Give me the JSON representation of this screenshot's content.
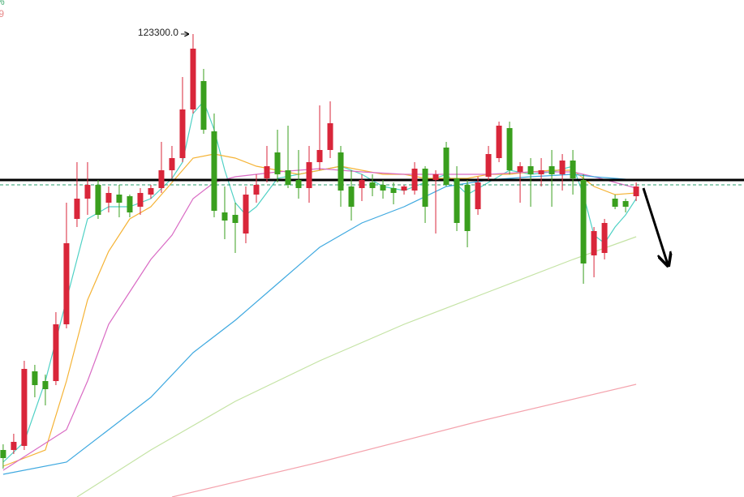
{
  "chart_data": {
    "type": "candlestick",
    "up_color": "#d9263a",
    "down_color": "#3a9f1e",
    "xlim": [
      -0.3,
      60.3
    ],
    "ylim": [
      109025,
      124350
    ],
    "open": [
      110475,
      110475,
      110600,
      112900,
      112600,
      112600,
      114350,
      117600,
      118225,
      118650,
      118100,
      118350,
      118300,
      117975,
      118350,
      118550,
      119100,
      119475,
      120975,
      121850,
      120300,
      117800,
      117725,
      117150,
      118350,
      118850,
      119650,
      119100,
      118800,
      118550,
      119350,
      119725,
      119650,
      118600,
      118550,
      118725,
      118650,
      118550,
      118475,
      118475,
      119150,
      118800,
      119800,
      118850,
      118650,
      117900,
      118900,
      119475,
      120400,
      119050,
      119225,
      118975,
      119225,
      118975,
      119400,
      118800,
      116475,
      116550,
      118225,
      118150,
      118300
    ],
    "high": [
      110650,
      110975,
      113225,
      113100,
      112800,
      114725,
      118100,
      119350,
      119350,
      118800,
      118600,
      118650,
      118350,
      118550,
      118650,
      119975,
      119850,
      121975,
      123300,
      122225,
      120850,
      118600,
      118100,
      118600,
      118975,
      119850,
      120350,
      120475,
      119725,
      119850,
      121100,
      121225,
      119850,
      119100,
      118975,
      118975,
      118800,
      118725,
      118650,
      119350,
      119225,
      119100,
      119975,
      119225,
      118800,
      118900,
      119850,
      120600,
      120600,
      119350,
      119475,
      119475,
      119725,
      119600,
      119725,
      118975,
      117350,
      117600,
      118350,
      118225,
      118725
    ],
    "low": [
      109900,
      110350,
      110475,
      112100,
      111850,
      112475,
      114225,
      117350,
      117725,
      117600,
      117800,
      117650,
      117650,
      117725,
      118225,
      118400,
      118850,
      119350,
      120850,
      120225,
      117650,
      116975,
      116550,
      116850,
      118100,
      118725,
      118725,
      118550,
      118225,
      118100,
      119100,
      119475,
      117975,
      117550,
      118150,
      118300,
      118225,
      118050,
      118350,
      118350,
      117475,
      117150,
      118600,
      117225,
      116725,
      117725,
      118800,
      119350,
      118975,
      118100,
      117975,
      118600,
      117975,
      118475,
      118350,
      115600,
      115800,
      116350,
      117900,
      117800,
      118150
    ],
    "close": [
      110225,
      110725,
      112975,
      112475,
      112350,
      114350,
      116850,
      118225,
      118650,
      117725,
      118400,
      118100,
      117800,
      118400,
      118550,
      119100,
      119475,
      120975,
      122850,
      120350,
      117850,
      117550,
      117475,
      118350,
      118650,
      119225,
      118975,
      118650,
      118550,
      119350,
      119725,
      120550,
      118475,
      117975,
      118800,
      118550,
      118475,
      118400,
      118600,
      119150,
      117975,
      118975,
      118650,
      117475,
      117225,
      118725,
      119600,
      120475,
      119100,
      119225,
      118975,
      119100,
      118975,
      119400,
      118850,
      116225,
      117225,
      117475,
      117975,
      117975,
      118600
    ],
    "lines": [
      {
        "color": "#4fd1c5",
        "x": [
          0,
          2,
          4,
          6,
          8,
          10,
          12,
          14,
          16,
          17,
          18,
          19,
          20,
          21,
          22,
          23,
          24,
          26,
          28,
          30,
          32,
          34,
          36,
          38,
          40,
          42,
          44,
          46,
          48,
          50,
          52,
          54,
          55,
          56,
          57,
          58,
          59,
          60
        ],
        "values": [
          110100,
          110725,
          112600,
          115100,
          117600,
          117975,
          117975,
          118225,
          118850,
          119350,
          120850,
          121225,
          120350,
          119100,
          118100,
          117725,
          117975,
          118850,
          118975,
          119100,
          119225,
          118975,
          118600,
          118475,
          118725,
          118975,
          118350,
          118725,
          119100,
          118975,
          119050,
          119225,
          118350,
          117100,
          116850,
          117350,
          117725,
          118225
        ]
      },
      {
        "color": "#f5b335",
        "x": [
          0,
          4,
          6,
          8,
          10,
          12,
          14,
          16,
          17,
          18,
          20,
          22,
          24,
          26,
          28,
          30,
          32,
          34,
          36,
          38,
          40,
          42,
          44,
          46,
          48,
          50,
          52,
          54,
          55,
          56,
          58,
          60
        ],
        "values": [
          109975,
          110475,
          112600,
          115100,
          116600,
          117600,
          117975,
          118725,
          119100,
          119475,
          119600,
          119475,
          119225,
          119100,
          118975,
          119100,
          119225,
          119100,
          118975,
          118975,
          118850,
          118850,
          118850,
          118975,
          118975,
          119050,
          119100,
          119100,
          118850,
          118600,
          118350,
          118400
        ]
      },
      {
        "color": "#d96bc4",
        "x": [
          0,
          6,
          8,
          10,
          12,
          14,
          16,
          18,
          20,
          22,
          24,
          26,
          28,
          30,
          34,
          38,
          42,
          46,
          50,
          54,
          56,
          58,
          60
        ],
        "values": [
          109850,
          111100,
          112600,
          114350,
          115350,
          116350,
          117100,
          118225,
          118725,
          118900,
          118975,
          119050,
          119100,
          119150,
          119050,
          118975,
          118975,
          118975,
          119050,
          119050,
          118900,
          118725,
          118550
        ]
      },
      {
        "color": "#3fa9e0",
        "x": [
          0,
          6,
          10,
          14,
          18,
          22,
          26,
          30,
          34,
          38,
          42,
          46,
          50,
          54,
          56,
          60
        ],
        "values": [
          109725,
          110100,
          111100,
          112100,
          113475,
          114475,
          115600,
          116725,
          117475,
          117975,
          118600,
          118800,
          118900,
          118975,
          118900,
          118800
        ]
      },
      {
        "color": "#c4e3a4",
        "x": [
          7,
          14,
          22,
          30,
          38,
          46,
          54,
          60
        ],
        "values": [
          109025,
          110475,
          111975,
          113225,
          114350,
          115350,
          116350,
          117050
        ]
      },
      {
        "color": "#f4a3ad",
        "x": [
          16,
          30,
          45,
          60
        ],
        "values": [
          109025,
          110100,
          111350,
          112500
        ]
      }
    ],
    "hlines": [
      {
        "value": 118800,
        "color": "#000000",
        "style": "solid"
      },
      {
        "value": 118650,
        "color": "#2a9d6e",
        "style": "dashed"
      }
    ],
    "annotations": [
      {
        "x": 18,
        "value": 123300,
        "label": "123300.0"
      }
    ],
    "corner_labels": [
      {
        "text": "%",
        "color": "#3aa86b"
      },
      {
        "text": ".9",
        "color": "#e88a8a"
      }
    ]
  }
}
